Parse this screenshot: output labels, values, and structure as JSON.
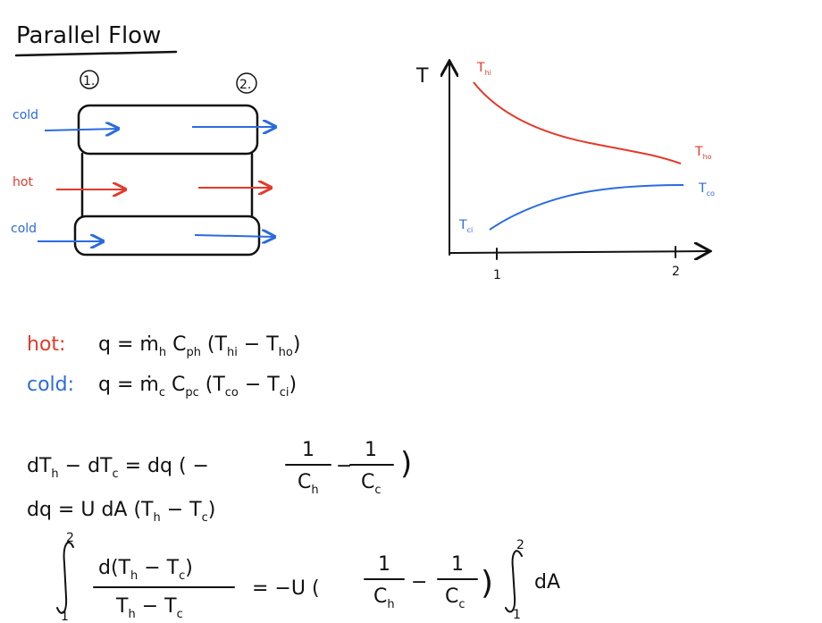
{
  "title": "Parallel Flow",
  "exchanger": {
    "stations": [
      "1.",
      "2."
    ],
    "streams": [
      "cold",
      "hot",
      "cold"
    ]
  },
  "graph": {
    "y_axis": "T",
    "x_ticks": [
      "1",
      "2"
    ],
    "hot_in": [
      {
        "t": "T",
        "s": "hi"
      }
    ],
    "hot_out": [
      {
        "t": "T",
        "s": "ho"
      }
    ],
    "cold_in": [
      {
        "t": "T",
        "s": "ci"
      }
    ],
    "cold_out": [
      {
        "t": "T",
        "s": "co"
      }
    ]
  },
  "equations": [
    {
      "label": "hot:",
      "expr": [
        {
          "t": "q = ṁ",
          "s": "h"
        },
        {
          "t": " C",
          "s": "ph"
        },
        {
          "t": " (T",
          "s": "hi"
        },
        {
          "t": " − T",
          "s": "ho"
        },
        {
          "t": ")"
        }
      ]
    },
    {
      "label": "cold:",
      "expr": [
        {
          "t": "q = ṁ",
          "s": "c"
        },
        {
          "t": " C",
          "s": "pc"
        },
        {
          "t": " (T",
          "s": "co"
        },
        {
          "t": " − T",
          "s": "ci"
        },
        {
          "t": ")"
        }
      ]
    },
    {
      "lhs": [
        {
          "t": "dT",
          "s": "h"
        },
        {
          "t": " − dT",
          "s": "c"
        },
        {
          "t": " = dq ( −"
        }
      ],
      "frac1": {
        "num": "1",
        "den": [
          {
            "t": "C",
            "s": "h"
          }
        ]
      },
      "mid": "−",
      "frac2": {
        "num": "1",
        "den": [
          {
            "t": "C",
            "s": "c"
          }
        ]
      },
      "end": ")"
    },
    {
      "expr": [
        {
          "t": "dq = U dA (T",
          "s": "h"
        },
        {
          "t": " − T",
          "s": "c"
        },
        {
          "t": ")"
        }
      ]
    },
    {
      "int_upper": "2",
      "int_lower": "1",
      "num": [
        {
          "t": "d(T",
          "s": "h"
        },
        {
          "t": " − T",
          "s": "c"
        },
        {
          "t": ")"
        }
      ],
      "den": [
        {
          "t": "T",
          "s": "h"
        },
        {
          "t": " − T",
          "s": "c"
        }
      ],
      "rhs": "= −U (",
      "frac1": {
        "num": "1",
        "den": [
          {
            "t": "C",
            "s": "h"
          }
        ]
      },
      "mid": "−",
      "frac2": {
        "num": "1",
        "den": [
          {
            "t": "C",
            "s": "c"
          }
        ]
      },
      "end": ")",
      "int2_upper": "2",
      "int2_lower": "1",
      "tail": "dA"
    }
  ]
}
